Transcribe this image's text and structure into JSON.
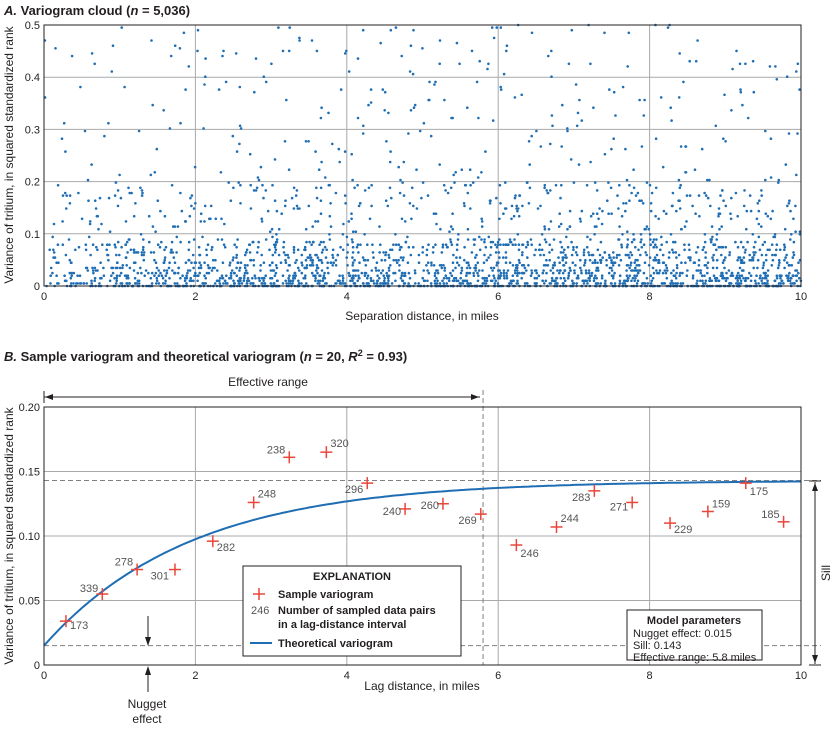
{
  "colors": {
    "points": "#1f6eb4",
    "theoretical": "#1f6eb4",
    "sample_marker": "#e8463b",
    "grid": "#a7a9ac",
    "dashed": "#808080"
  },
  "chart_data": [
    {
      "type": "scatter",
      "title_prefix": "A.",
      "title": "Variogram cloud (n = 5,036)",
      "title_parts": {
        "letter": "A.",
        "text": "Variogram cloud (",
        "n_symbol": "n",
        "n_value": " = 5,036)"
      },
      "xlabel": "Separation distance, in miles",
      "ylabel": "Variance of tritium, in squared standardized rank",
      "xlim": [
        0,
        10
      ],
      "ylim": [
        0,
        0.5
      ],
      "xticks": [
        "0",
        "2",
        "4",
        "6",
        "8",
        "10"
      ],
      "yticks": [
        "0",
        "0.1",
        "0.2",
        "0.3",
        "0.4",
        "0.5"
      ],
      "n_points": 5036,
      "point_generation": "dense cloud of ~5,036 pair variances; concentrated near 0, scattered to 0.5 across 0–10 miles (representative sample drawn)"
    },
    {
      "type": "scatter+line",
      "title_parts": {
        "letter": "B.",
        "text": "Sample variogram and theoretical variogram (",
        "n_symbol": "n",
        "n_value": " = 20, ",
        "r_symbol": "R",
        "r_sup": "2",
        "r_value": " = 0.93)"
      },
      "xlabel": "Lag distance, in miles",
      "ylabel": "Variance of tritium, in squared standardized rank",
      "xlim": [
        0,
        10
      ],
      "ylim": [
        0,
        0.2
      ],
      "xticks": [
        "0",
        "2",
        "4",
        "6",
        "8",
        "10"
      ],
      "yticks": [
        "0",
        "0.05",
        "0.10",
        "0.15",
        "0.20"
      ],
      "sample_variogram": {
        "x": [
          0.29,
          0.77,
          1.23,
          1.73,
          2.23,
          2.77,
          3.24,
          3.73,
          4.27,
          4.77,
          5.27,
          5.77,
          6.24,
          6.77,
          7.27,
          7.77,
          8.27,
          8.77,
          9.27,
          9.77
        ],
        "y": [
          0.034,
          0.055,
          0.074,
          0.074,
          0.096,
          0.126,
          0.161,
          0.165,
          0.141,
          0.121,
          0.125,
          0.117,
          0.093,
          0.107,
          0.135,
          0.126,
          0.11,
          0.119,
          0.141,
          0.111
        ],
        "labels": [
          "173",
          "339",
          "278",
          "301",
          "282",
          "248",
          "238",
          "320",
          "296",
          "240",
          "260",
          "269",
          "246",
          "244",
          "283",
          "271",
          "229",
          "159",
          "175",
          "185"
        ]
      },
      "theoretical_variogram": {
        "model": "exponential",
        "nugget": 0.015,
        "sill": 0.143,
        "effective_range": 5.8
      },
      "annotations": {
        "effective_range": "Effective range",
        "nugget_effect_line1": "Nugget",
        "nugget_effect_line2": "effect",
        "sill": "Sill"
      },
      "explanation": {
        "heading": "EXPLANATION",
        "sample": "Sample variogram",
        "count_example": "246",
        "count_line1": "Number of sampled data pairs",
        "count_line2": "in a lag-distance interval",
        "theoretical": "Theoretical variogram"
      },
      "model_parameters": {
        "heading": "Model parameters",
        "nugget": "Nugget effect: 0.015",
        "sill": "Sill: 0.143",
        "range": "Effective range: 5.8 miles"
      }
    }
  ]
}
